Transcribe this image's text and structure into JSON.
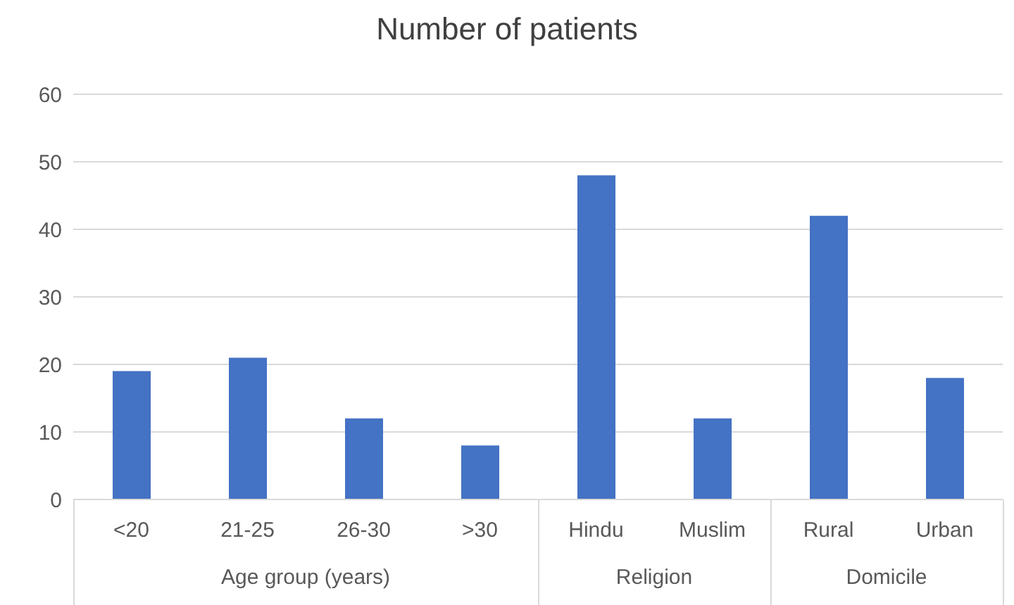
{
  "chart_data": {
    "type": "bar",
    "title": "Number of patients",
    "categories": [
      "<20",
      "21-25",
      "26-30",
      ">30",
      "Hindu",
      "Muslim",
      "Rural",
      "Urban"
    ],
    "values": [
      19,
      21,
      12,
      8,
      48,
      12,
      42,
      18
    ],
    "color": "#4472c4",
    "ylim": [
      0,
      60
    ],
    "yticks": [
      0,
      10,
      20,
      30,
      40,
      50,
      60
    ],
    "grid": "y",
    "annotations": [
      "Age group (years)",
      "Religion",
      "Domicile"
    ]
  }
}
